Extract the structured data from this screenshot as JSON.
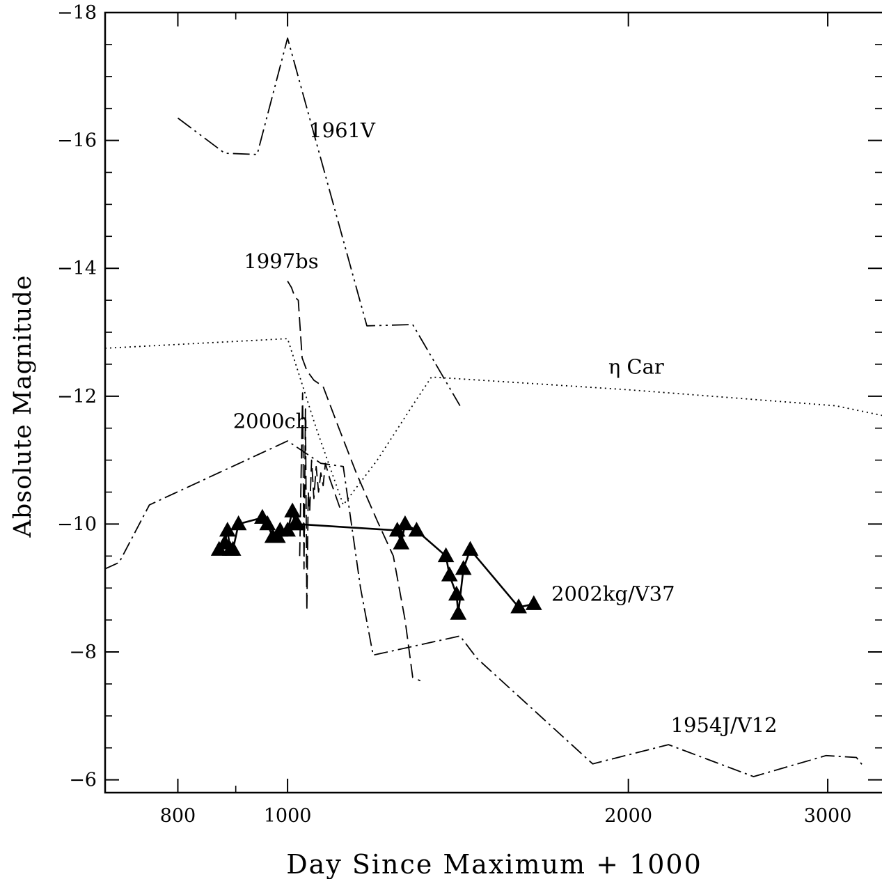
{
  "chart_data": {
    "type": "line",
    "title": "",
    "xlabel": "Day Since Maximum + 1000",
    "ylabel": "Absolute Magnitude",
    "x_scale": "log",
    "xlim": [
      690,
      3350
    ],
    "ylim": [
      -5.8,
      -18
    ],
    "x_ticks": [
      800,
      1000,
      2000,
      3000
    ],
    "x_tick_labels": [
      "800",
      "1000",
      "2000",
      "3000"
    ],
    "y_ticks": [
      -6,
      -8,
      -10,
      -12,
      -14,
      -16,
      -18
    ],
    "y_tick_labels": [
      "−6",
      "−8",
      "−10",
      "−12",
      "−14",
      "−16",
      "−18"
    ],
    "grid": false,
    "legend": "none",
    "series": [
      {
        "name": "1961V",
        "style": "dash-dot-dot",
        "points": [
          [
            800,
            -16.35
          ],
          [
            880,
            -15.8
          ],
          [
            940,
            -15.78
          ],
          [
            1000,
            -17.6
          ],
          [
            1175,
            -13.1
          ],
          [
            1290,
            -13.12
          ],
          [
            1420,
            -11.85
          ]
        ]
      },
      {
        "name": "1997bs",
        "style": "dashed",
        "points": [
          [
            1000,
            -13.8
          ],
          [
            1008,
            -13.7
          ],
          [
            1015,
            -13.55
          ],
          [
            1022,
            -13.5
          ],
          [
            1030,
            -12.6
          ],
          [
            1040,
            -12.4
          ],
          [
            1055,
            -12.25
          ],
          [
            1075,
            -12.15
          ],
          [
            1110,
            -11.5
          ],
          [
            1150,
            -10.8
          ],
          [
            1200,
            -10.05
          ],
          [
            1240,
            -9.5
          ],
          [
            1270,
            -8.5
          ],
          [
            1290,
            -7.6
          ],
          [
            1310,
            -7.55
          ]
        ]
      },
      {
        "name": "2000ch",
        "style": "dashed",
        "points": [
          [
            1025,
            -9.5
          ],
          [
            1028,
            -10.8
          ],
          [
            1031,
            -12.05
          ],
          [
            1034,
            -9.3
          ],
          [
            1037,
            -11.8
          ],
          [
            1040,
            -8.65
          ],
          [
            1043,
            -10.5
          ],
          [
            1046,
            -10.2
          ],
          [
            1050,
            -11.0
          ],
          [
            1055,
            -10.4
          ],
          [
            1060,
            -10.9
          ],
          [
            1065,
            -10.5
          ],
          [
            1070,
            -10.8
          ],
          [
            1075,
            -10.6
          ],
          [
            1080,
            -10.95
          ],
          [
            1090,
            -10.7
          ],
          [
            1100,
            -10.5
          ],
          [
            1115,
            -10.2
          ]
        ]
      },
      {
        "name": "η Car",
        "style": "dotted",
        "points": [
          [
            690,
            -12.75
          ],
          [
            1000,
            -12.9
          ],
          [
            1060,
            -11.5
          ],
          [
            1120,
            -10.3
          ],
          [
            1200,
            -11.0
          ],
          [
            1300,
            -11.95
          ],
          [
            1340,
            -12.3
          ],
          [
            2000,
            -12.1
          ],
          [
            3050,
            -11.85
          ],
          [
            3350,
            -11.7
          ]
        ]
      },
      {
        "name": "1954J/V12",
        "style": "dash-dot",
        "points": [
          [
            690,
            -9.3
          ],
          [
            710,
            -9.4
          ],
          [
            755,
            -10.3
          ],
          [
            1000,
            -11.3
          ],
          [
            1070,
            -10.95
          ],
          [
            1120,
            -10.9
          ],
          [
            1160,
            -9.0
          ],
          [
            1190,
            -7.95
          ],
          [
            1420,
            -8.25
          ],
          [
            1470,
            -7.9
          ],
          [
            1860,
            -6.25
          ],
          [
            2170,
            -6.55
          ],
          [
            2580,
            -6.05
          ],
          [
            2990,
            -6.38
          ],
          [
            3180,
            -6.35
          ],
          [
            3230,
            -6.2
          ]
        ]
      },
      {
        "name": "2002kg/V37",
        "style": "solid-triangles",
        "points": [
          [
            870,
            -9.6
          ],
          [
            880,
            -9.7
          ],
          [
            885,
            -9.9
          ],
          [
            890,
            -9.6
          ],
          [
            895,
            -9.6
          ],
          [
            905,
            -10.0
          ],
          [
            950,
            -10.1
          ],
          [
            960,
            -10.0
          ],
          [
            970,
            -9.8
          ],
          [
            980,
            -9.8
          ],
          [
            985,
            -9.9
          ],
          [
            1000,
            -9.9
          ],
          [
            1010,
            -10.2
          ],
          [
            1015,
            -10.0
          ],
          [
            1020,
            -10.0
          ],
          [
            1250,
            -9.9
          ],
          [
            1260,
            -9.7
          ],
          [
            1270,
            -10.0
          ],
          [
            1300,
            -9.9
          ],
          [
            1380,
            -9.5
          ],
          [
            1390,
            -9.2
          ],
          [
            1410,
            -8.9
          ],
          [
            1415,
            -8.6
          ],
          [
            1430,
            -9.3
          ],
          [
            1450,
            -9.6
          ],
          [
            1600,
            -8.7
          ],
          [
            1650,
            -8.75
          ]
        ]
      }
    ],
    "annotations": [
      {
        "text": "1961V",
        "x": 1045,
        "y": -16.05
      },
      {
        "text": "1997bs",
        "x": 915,
        "y": -14.0
      },
      {
        "text": "η Car",
        "x": 1920,
        "y": -12.35
      },
      {
        "text": "2000ch",
        "x": 895,
        "y": -11.5
      },
      {
        "text": "2002kg/V37",
        "x": 1710,
        "y": -8.8
      },
      {
        "text": "1954J/V12",
        "x": 2180,
        "y": -6.75
      }
    ]
  }
}
